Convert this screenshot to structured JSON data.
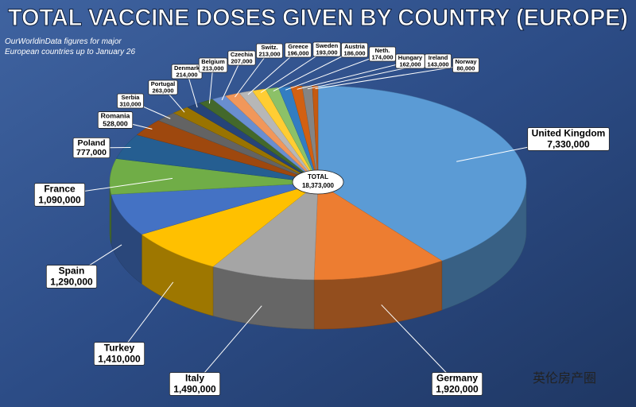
{
  "chart_data": {
    "type": "pie3d",
    "title": "TOTAL VACCINE DOSES GIVEN BY COUNTRY (EUROPE)",
    "subtitle": "OurWorldinData figures for major European countries up to January 26",
    "center_label": "TOTAL",
    "center_value_label": "18,373,000",
    "watermark": "英伦房产圈",
    "categories": [
      "United Kingdom",
      "Germany",
      "Italy",
      "Turkey",
      "Spain",
      "France",
      "Poland",
      "Romania",
      "Serbia",
      "Portugal",
      "Denmark",
      "Belgium",
      "Czechia",
      "Switz.",
      "Greece",
      "Sweden",
      "Austria",
      "Neth.",
      "Hungary",
      "Ireland",
      "Norway"
    ],
    "values": [
      7330000,
      1920000,
      1490000,
      1410000,
      1290000,
      1090000,
      777000,
      528000,
      310000,
      263000,
      214000,
      213000,
      207000,
      213000,
      196000,
      193000,
      186000,
      174000,
      162000,
      143000,
      80000
    ],
    "value_labels": [
      "7,330,000",
      "1,920,000",
      "1,490,000",
      "1,410,000",
      "1,290,000",
      "1,090,000",
      "777,000",
      "528,000",
      "310,000",
      "263,000",
      "214,000",
      "213,000",
      "207,000",
      "213,000",
      "196,000",
      "193,000",
      "186,000",
      "174,000",
      "162,000",
      "143,000",
      "80,000"
    ],
    "colors": [
      "#5b9bd5",
      "#ed7d31",
      "#a5a5a5",
      "#ffc000",
      "#4472c4",
      "#70ad47",
      "#255e91",
      "#9e480e",
      "#636363",
      "#997300",
      "#264478",
      "#43682b",
      "#698ed0",
      "#f1975a",
      "#b7b7b7",
      "#ffcd33",
      "#8cc168",
      "#327dc2",
      "#d26012",
      "#848484",
      "#c55a11"
    ]
  }
}
